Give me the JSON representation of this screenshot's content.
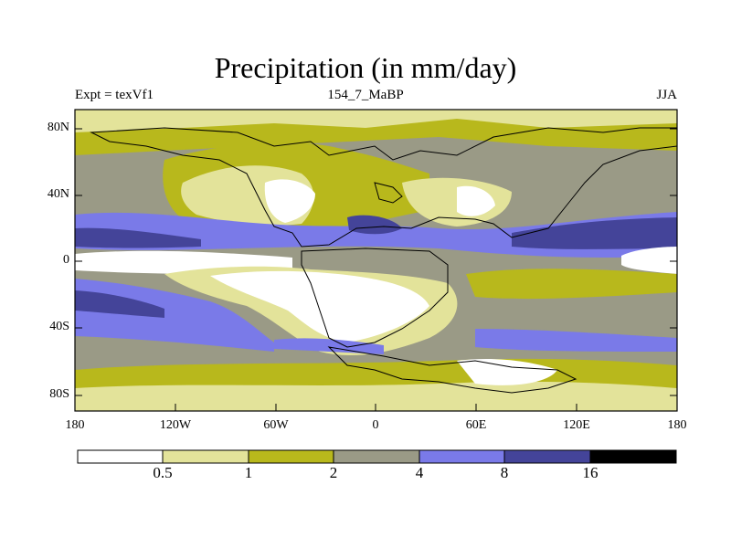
{
  "title": "Precipitation (in mm/day)",
  "subtitle_left": "Expt = texVf1",
  "subtitle_center": "154_7_MaBP",
  "subtitle_right": "JJA",
  "y_axis_labels": [
    "80N",
    "40N",
    "0",
    "40S",
    "80S"
  ],
  "x_axis_labels": [
    "180",
    "120W",
    "60W",
    "0",
    "60E",
    "120E",
    "180"
  ],
  "colorbar": {
    "levels": [
      "0.5",
      "1",
      "2",
      "4",
      "8",
      "16"
    ],
    "colors": [
      "#ffffff",
      "#e3e39a",
      "#b8b81c",
      "#9a9a86",
      "#7a7ae8",
      "#444499",
      "#000000"
    ]
  },
  "legend_colors": {
    "c0": "#ffffff",
    "c1": "#e3e39a",
    "c2": "#b8b81c",
    "c3": "#9a9a86",
    "c4": "#7a7ae8",
    "c5": "#444499",
    "c6": "#000000"
  }
}
